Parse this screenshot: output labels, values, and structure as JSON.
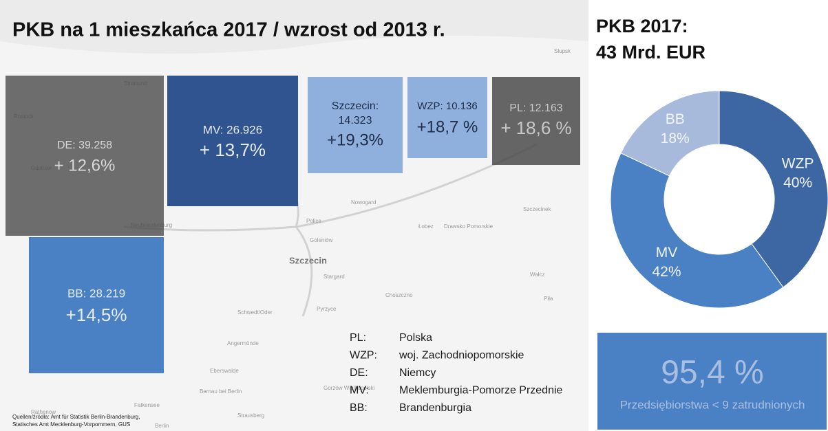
{
  "slide": {
    "title": "PKB na 1 mieszkańca 2017 / wzrost od 2013 r.",
    "boxes": [
      {
        "lines": [
          "DE: 39.258",
          "+ 12,6%"
        ]
      },
      {
        "lines": [
          "MV: 26.926",
          "+ 13,7%"
        ]
      },
      {
        "lines": [
          "Szczecin:",
          "14.323",
          "+19,3%"
        ]
      },
      {
        "lines": [
          "WZP: 10.136",
          "+18,7 %"
        ]
      },
      {
        "lines": [
          "PL: 12.163",
          "+ 18,6 %"
        ]
      },
      {
        "lines": [
          "BB: 28.219",
          "+14,5%"
        ]
      }
    ],
    "legend": [
      [
        "PL:",
        "Polska"
      ],
      [
        "WZP:",
        "woj. Zachodniopomorskie"
      ],
      [
        "DE:",
        "Niemcy"
      ],
      [
        "MV:",
        "Meklemburgia-Pomorze  Przednie"
      ],
      [
        "BB:",
        "Brandenburgia"
      ]
    ],
    "source": [
      "Quellen/źródła: Amt für Statistik Berlin-Brandenburg,",
      "Statisches Amt Mecklenburg-Vorpommern, GUS"
    ],
    "stat": {
      "value": "95,4 %",
      "caption": "Przedsiębiorstwa < 9 zatrudnionych"
    },
    "map_labels": [
      "Rostock",
      "Stralsund",
      "Güstrow",
      "Neubrandenburg",
      "Szczecin",
      "Police",
      "Goleniów",
      "Nowogard",
      "Stargard",
      "Pyrzyce",
      "Choszczno",
      "Łobez",
      "Drawsko Pomorskie",
      "Szczecinek",
      "Wałcz",
      "Piła",
      "Słupsk",
      "Schwedt/Oder",
      "Angermünde",
      "Eberswalde",
      "Bernau bei Berlin",
      "Strausberg",
      "Falkensee",
      "Rathenow",
      "Berlin",
      "Gorzów Wielkopolski"
    ]
  },
  "chart_data": {
    "type": "donut",
    "title": [
      "PKB 2017:",
      "43 Mrd. EUR"
    ],
    "categories": [
      "WZP",
      "MV",
      "BB"
    ],
    "values": [
      40,
      42,
      18
    ],
    "value_labels": [
      "40%",
      "42%",
      "18%"
    ],
    "colors": [
      "#3d67a3",
      "#4a80c4",
      "#a8badb"
    ]
  }
}
